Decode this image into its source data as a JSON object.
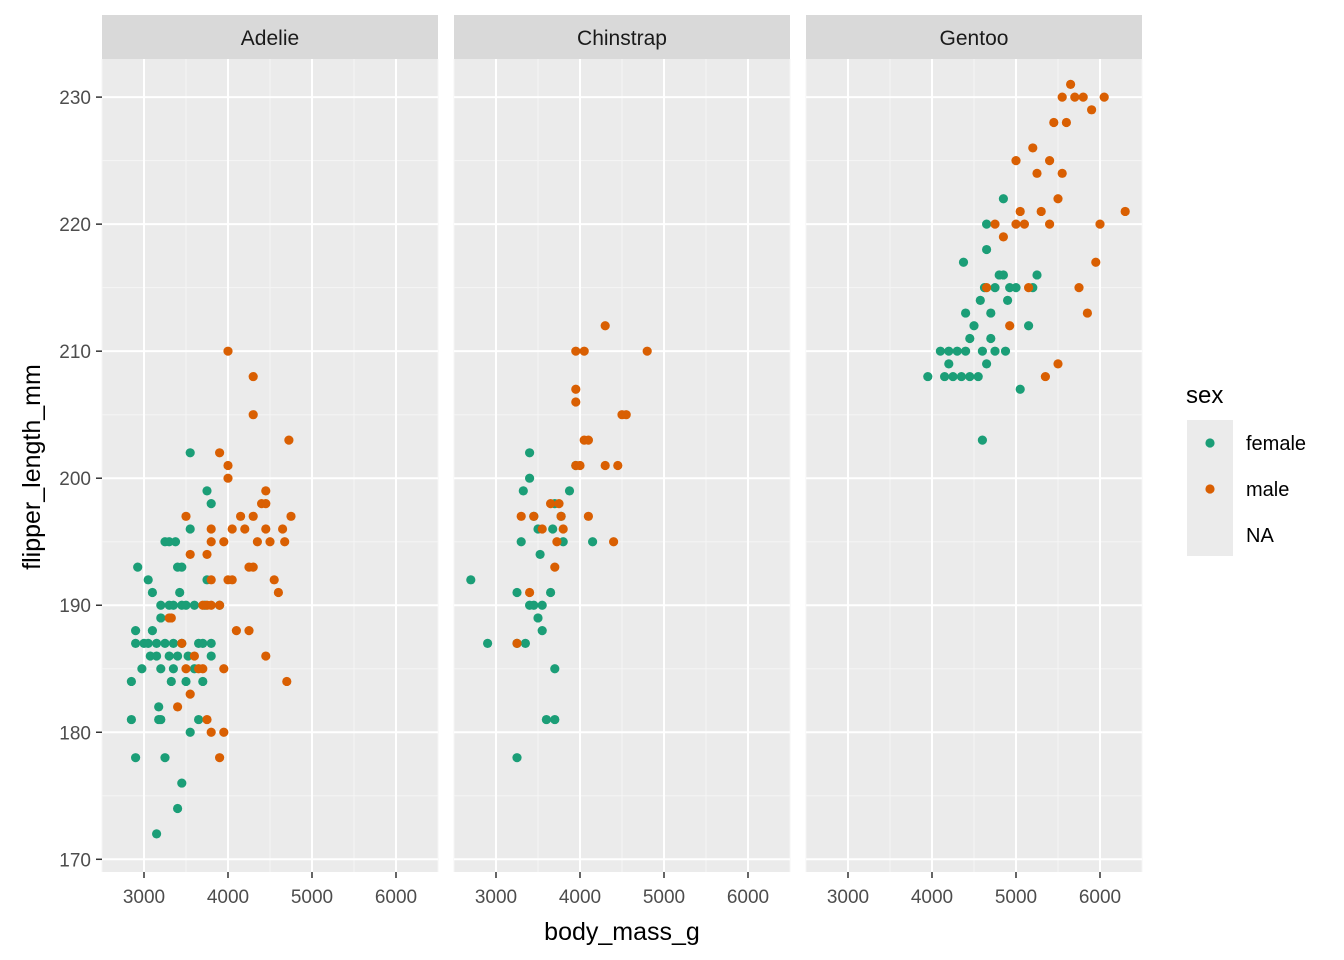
{
  "chart_data": {
    "type": "scatter",
    "facet_by": "species",
    "x_label": "body_mass_g",
    "y_label": "flipper_length_mm",
    "x_ticks": [
      3000,
      4000,
      5000,
      6000
    ],
    "y_ticks": [
      170,
      180,
      190,
      200,
      210,
      220,
      230
    ],
    "xlim": [
      2500,
      6500
    ],
    "ylim": [
      169,
      233
    ],
    "grid": true,
    "legend": {
      "title": "sex",
      "position": "right",
      "entries": [
        {
          "label": "female",
          "color": "#1B9E77"
        },
        {
          "label": "male",
          "color": "#D95F02"
        },
        {
          "label": "NA",
          "color": null
        }
      ]
    },
    "colors": {
      "female": "#1B9E77",
      "male": "#D95F02",
      "panel_bg": "#EBEBEB",
      "strip_bg": "#D9D9D9",
      "grid": "#FFFFFF"
    },
    "panels": [
      {
        "name": "Adelie",
        "series": [
          {
            "name": "female",
            "points": [
              [
                2850,
                184
              ],
              [
                2850,
                181
              ],
              [
                2900,
                178
              ],
              [
                2900,
                188
              ],
              [
                2900,
                187
              ],
              [
                2925,
                193
              ],
              [
                2975,
                185
              ],
              [
                3000,
                187
              ],
              [
                3050,
                192
              ],
              [
                3050,
                187
              ],
              [
                3075,
                186
              ],
              [
                3100,
                191
              ],
              [
                3100,
                188
              ],
              [
                3150,
                187
              ],
              [
                3150,
                186
              ],
              [
                3150,
                172
              ],
              [
                3175,
                182
              ],
              [
                3175,
                181
              ],
              [
                3200,
                190
              ],
              [
                3200,
                189
              ],
              [
                3200,
                181
              ],
              [
                3200,
                185
              ],
              [
                3250,
                195
              ],
              [
                3250,
                187
              ],
              [
                3250,
                178
              ],
              [
                3300,
                190
              ],
              [
                3300,
                186
              ],
              [
                3300,
                195
              ],
              [
                3325,
                184
              ],
              [
                3350,
                190
              ],
              [
                3350,
                185
              ],
              [
                3350,
                187
              ],
              [
                3375,
                195
              ],
              [
                3400,
                193
              ],
              [
                3400,
                186
              ],
              [
                3400,
                174
              ],
              [
                3425,
                191
              ],
              [
                3450,
                190
              ],
              [
                3450,
                187
              ],
              [
                3450,
                176
              ],
              [
                3450,
                193
              ],
              [
                3500,
                184
              ],
              [
                3500,
                190
              ],
              [
                3525,
                186
              ],
              [
                3550,
                202
              ],
              [
                3550,
                196
              ],
              [
                3550,
                180
              ],
              [
                3600,
                190
              ],
              [
                3600,
                185
              ],
              [
                3650,
                187
              ],
              [
                3650,
                181
              ],
              [
                3700,
                187
              ],
              [
                3700,
                184
              ],
              [
                3725,
                190
              ],
              [
                3750,
                199
              ],
              [
                3750,
                192
              ],
              [
                3800,
                186
              ],
              [
                3800,
                198
              ],
              [
                3800,
                187
              ],
              [
                3900,
                190
              ]
            ]
          },
          {
            "name": "male",
            "points": [
              [
                3300,
                189
              ],
              [
                3325,
                189
              ],
              [
                3400,
                182
              ],
              [
                3450,
                187
              ],
              [
                3500,
                185
              ],
              [
                3500,
                197
              ],
              [
                3550,
                194
              ],
              [
                3550,
                183
              ],
              [
                3600,
                186
              ],
              [
                3650,
                185
              ],
              [
                3700,
                190
              ],
              [
                3700,
                185
              ],
              [
                3750,
                181
              ],
              [
                3750,
                194
              ],
              [
                3750,
                190
              ],
              [
                3800,
                190
              ],
              [
                3800,
                180
              ],
              [
                3800,
                192
              ],
              [
                3800,
                196
              ],
              [
                3800,
                195
              ],
              [
                3900,
                190
              ],
              [
                3900,
                202
              ],
              [
                3900,
                178
              ],
              [
                3950,
                180
              ],
              [
                3950,
                185
              ],
              [
                3950,
                195
              ],
              [
                4000,
                200
              ],
              [
                4000,
                201
              ],
              [
                4000,
                192
              ],
              [
                4000,
                210
              ],
              [
                4050,
                192
              ],
              [
                4050,
                196
              ],
              [
                4100,
                188
              ],
              [
                4150,
                197
              ],
              [
                4200,
                196
              ],
              [
                4250,
                193
              ],
              [
                4250,
                188
              ],
              [
                4300,
                197
              ],
              [
                4300,
                193
              ],
              [
                4300,
                205
              ],
              [
                4300,
                208
              ],
              [
                4350,
                195
              ],
              [
                4400,
                198
              ],
              [
                4450,
                199
              ],
              [
                4450,
                196
              ],
              [
                4450,
                186
              ],
              [
                4450,
                198
              ],
              [
                4500,
                195
              ],
              [
                4550,
                192
              ],
              [
                4600,
                191
              ],
              [
                4650,
                196
              ],
              [
                4675,
                195
              ],
              [
                4700,
                184
              ],
              [
                4725,
                203
              ],
              [
                4750,
                197
              ]
            ]
          }
        ]
      },
      {
        "name": "Chinstrap",
        "series": [
          {
            "name": "female",
            "points": [
              [
                2700,
                192
              ],
              [
                2900,
                187
              ],
              [
                3250,
                187
              ],
              [
                3250,
                178
              ],
              [
                3250,
                191
              ],
              [
                3300,
                195
              ],
              [
                3325,
                199
              ],
              [
                3350,
                187
              ],
              [
                3400,
                202
              ],
              [
                3400,
                200
              ],
              [
                3400,
                190
              ],
              [
                3450,
                190
              ],
              [
                3450,
                197
              ],
              [
                3500,
                189
              ],
              [
                3500,
                196
              ],
              [
                3525,
                194
              ],
              [
                3550,
                188
              ],
              [
                3550,
                190
              ],
              [
                3600,
                181
              ],
              [
                3650,
                191
              ],
              [
                3675,
                196
              ],
              [
                3700,
                181
              ],
              [
                3700,
                185
              ],
              [
                3700,
                198
              ],
              [
                3775,
                197
              ],
              [
                3800,
                195
              ],
              [
                3875,
                199
              ],
              [
                3950,
                201
              ],
              [
                4150,
                195
              ]
            ]
          },
          {
            "name": "male",
            "points": [
              [
                3250,
                187
              ],
              [
                3300,
                197
              ],
              [
                3400,
                191
              ],
              [
                3450,
                197
              ],
              [
                3550,
                196
              ],
              [
                3650,
                198
              ],
              [
                3700,
                193
              ],
              [
                3725,
                195
              ],
              [
                3750,
                198
              ],
              [
                3775,
                197
              ],
              [
                3800,
                196
              ],
              [
                3950,
                207
              ],
              [
                3950,
                201
              ],
              [
                3950,
                210
              ],
              [
                3950,
                206
              ],
              [
                4000,
                201
              ],
              [
                4050,
                203
              ],
              [
                4050,
                210
              ],
              [
                4100,
                203
              ],
              [
                4100,
                197
              ],
              [
                4300,
                212
              ],
              [
                4300,
                201
              ],
              [
                4400,
                195
              ],
              [
                4450,
                201
              ],
              [
                4500,
                205
              ],
              [
                4550,
                205
              ],
              [
                4800,
                210
              ]
            ]
          }
        ]
      },
      {
        "name": "Gentoo",
        "series": [
          {
            "name": "female",
            "points": [
              [
                3950,
                208
              ],
              [
                4100,
                210
              ],
              [
                4150,
                208
              ],
              [
                4200,
                209
              ],
              [
                4200,
                210
              ],
              [
                4250,
                208
              ],
              [
                4300,
                210
              ],
              [
                4350,
                208
              ],
              [
                4375,
                217
              ],
              [
                4400,
                210
              ],
              [
                4400,
                213
              ],
              [
                4450,
                211
              ],
              [
                4450,
                208
              ],
              [
                4500,
                212
              ],
              [
                4550,
                208
              ],
              [
                4575,
                214
              ],
              [
                4600,
                210
              ],
              [
                4600,
                203
              ],
              [
                4625,
                215
              ],
              [
                4650,
                218
              ],
              [
                4650,
                209
              ],
              [
                4650,
                220
              ],
              [
                4700,
                211
              ],
              [
                4700,
                213
              ],
              [
                4750,
                215
              ],
              [
                4750,
                210
              ],
              [
                4800,
                216
              ],
              [
                4850,
                216
              ],
              [
                4850,
                222
              ],
              [
                4875,
                210
              ],
              [
                4900,
                214
              ],
              [
                4925,
                215
              ],
              [
                5000,
                215
              ],
              [
                5050,
                207
              ],
              [
                5150,
                212
              ],
              [
                5200,
                215
              ],
              [
                5250,
                216
              ]
            ]
          },
          {
            "name": "male",
            "points": [
              [
                4650,
                215
              ],
              [
                4750,
                220
              ],
              [
                4850,
                219
              ],
              [
                4925,
                212
              ],
              [
                5000,
                225
              ],
              [
                5000,
                220
              ],
              [
                5050,
                221
              ],
              [
                5100,
                220
              ],
              [
                5150,
                215
              ],
              [
                5200,
                226
              ],
              [
                5250,
                224
              ],
              [
                5300,
                221
              ],
              [
                5350,
                208
              ],
              [
                5400,
                220
              ],
              [
                5400,
                225
              ],
              [
                5450,
                228
              ],
              [
                5500,
                209
              ],
              [
                5500,
                222
              ],
              [
                5550,
                230
              ],
              [
                5550,
                224
              ],
              [
                5600,
                228
              ],
              [
                5650,
                231
              ],
              [
                5700,
                230
              ],
              [
                5750,
                215
              ],
              [
                5800,
                230
              ],
              [
                5850,
                213
              ],
              [
                5900,
                229
              ],
              [
                5950,
                217
              ],
              [
                6000,
                220
              ],
              [
                6050,
                230
              ],
              [
                6300,
                221
              ]
            ]
          }
        ]
      }
    ]
  }
}
